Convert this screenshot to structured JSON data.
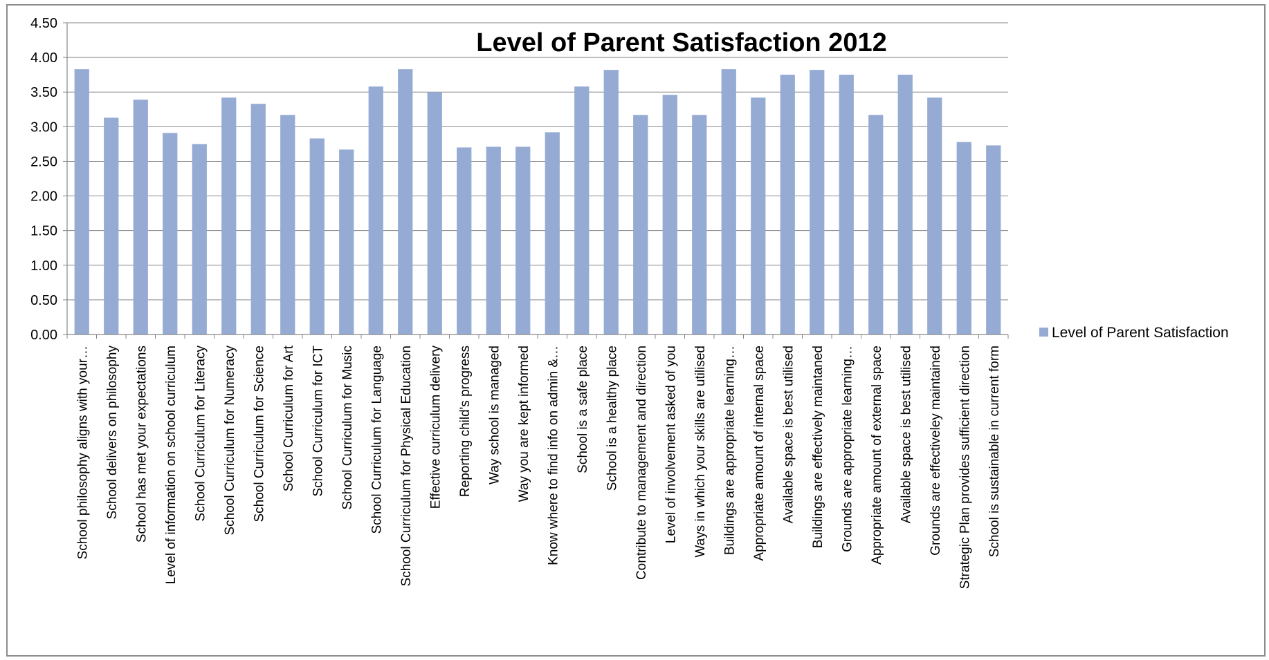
{
  "chart_data": {
    "type": "bar",
    "title": "Level of Parent Satisfaction 2012",
    "xlabel": "",
    "ylabel": "",
    "ylim": [
      0,
      4.5
    ],
    "yticks": [
      "0.00",
      "0.50",
      "1.00",
      "1.50",
      "2.00",
      "2.50",
      "3.00",
      "3.50",
      "4.00",
      "4.50"
    ],
    "grid": true,
    "legend_position": "right",
    "bar_color": "#95abd3",
    "categories": [
      "School philosophy aligns with your…",
      "School delivers on philosophy",
      "School has met your expectations",
      "Level of information on school curriculum",
      "School Curriculum for Literacy",
      "School Curriculum for Numeracy",
      "School Curriculum for Science",
      "School Curriculum for Art",
      "School Curriculum for ICT",
      "School Curriculum for Music",
      "School Curriculum for Language",
      "School Curriculum for Physical Education",
      "Effective curriculum delivery",
      "Reporting child's progress",
      "Way school is managed",
      "Way you are kept informed",
      "Know where to find info on admin &…",
      "School is a safe place",
      "School is a healthy place",
      "Contribute to management and direction",
      "Level of involvement asked of you",
      "Ways in which your skills are utilised",
      "Buildings are appropriate learning…",
      "Appropriate amount of internal space",
      "Available space is best utilised",
      "Buildings are effectively maintaned",
      "Grounds are appropriate learning…",
      "Appropriate amount of external space",
      "Available space is best utilised",
      "Grounds are effectiveley maintained",
      "Strategic Plan provides sufficient direction",
      "School is sustainable in current form"
    ],
    "series": [
      {
        "name": "Level of Parent Satisfaction",
        "values": [
          3.83,
          3.13,
          3.39,
          2.91,
          2.75,
          3.42,
          3.33,
          3.17,
          2.83,
          2.67,
          3.58,
          3.83,
          3.5,
          2.7,
          2.71,
          2.71,
          2.92,
          3.58,
          3.82,
          3.17,
          3.46,
          3.17,
          3.83,
          3.42,
          3.75,
          3.82,
          3.75,
          3.17,
          3.75,
          3.42,
          2.78,
          2.73
        ]
      }
    ]
  }
}
